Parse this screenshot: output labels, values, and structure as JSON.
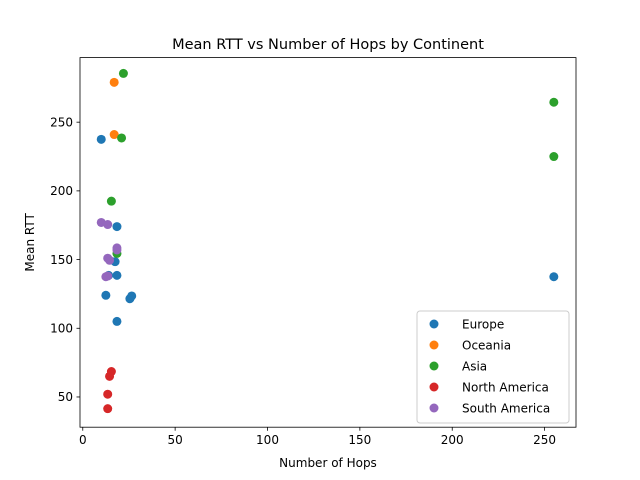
{
  "chart_data": {
    "type": "scatter",
    "title": "Mean RTT vs Number of Hops by Continent",
    "xlabel": "Number of Hops",
    "ylabel": "Mean RTT",
    "xlim": [
      -1.5,
      267
    ],
    "ylim": [
      28,
      297
    ],
    "xticks": [
      0,
      50,
      100,
      150,
      200,
      250
    ],
    "yticks": [
      50,
      100,
      150,
      200,
      250
    ],
    "grid": false,
    "legend_position": "lower-right",
    "series": [
      {
        "name": "Europe",
        "color": "#1f77b4",
        "points": [
          [
            10,
            237.5
          ],
          [
            12.5,
            124
          ],
          [
            14,
            138.5
          ],
          [
            17.5,
            148.5
          ],
          [
            18.5,
            174
          ],
          [
            18.5,
            138.5
          ],
          [
            18.5,
            105
          ],
          [
            25.5,
            121.5
          ],
          [
            26.5,
            123.5
          ],
          [
            255,
            137.5
          ]
        ]
      },
      {
        "name": "Oceania",
        "color": "#ff7f0e",
        "points": [
          [
            17,
            279
          ],
          [
            17,
            241
          ]
        ]
      },
      {
        "name": "Asia",
        "color": "#2ca02c",
        "points": [
          [
            22,
            285.5
          ],
          [
            21,
            238.5
          ],
          [
            15.5,
            192.5
          ],
          [
            18.5,
            154.5
          ],
          [
            255,
            264.5
          ],
          [
            255,
            225
          ]
        ]
      },
      {
        "name": "North America",
        "color": "#d62728",
        "points": [
          [
            15.5,
            68.5
          ],
          [
            14.5,
            65
          ],
          [
            13.5,
            52
          ],
          [
            13.5,
            41.5
          ]
        ]
      },
      {
        "name": "South America",
        "color": "#9467bd",
        "points": [
          [
            10,
            177
          ],
          [
            13.5,
            175.5
          ],
          [
            13.5,
            151
          ],
          [
            14.5,
            149.5
          ],
          [
            12.5,
            137.5
          ],
          [
            13.5,
            138
          ],
          [
            18.5,
            158.5
          ],
          [
            18.5,
            157
          ]
        ]
      }
    ]
  }
}
